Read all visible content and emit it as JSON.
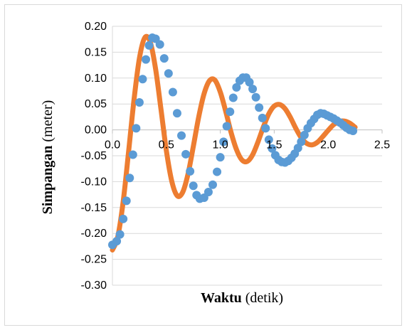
{
  "chart_data": {
    "type": "scatter",
    "title": "",
    "xlabel_bold": "Waktu",
    "xlabel_rest": " (detik)",
    "ylabel_bold": "Simpangan",
    "ylabel_rest": " (meter)",
    "xlim": [
      0,
      2.5
    ],
    "ylim": [
      -0.3,
      0.2
    ],
    "x_ticks": [
      "0.0",
      "0.5",
      "1.0",
      "1.5",
      "2.0",
      "2.5"
    ],
    "y_ticks": [
      "0.20",
      "0.15",
      "0.10",
      "0.05",
      "0.00",
      "-0.05",
      "-0.10",
      "-0.15",
      "-0.20",
      "-0.25",
      "-0.30"
    ],
    "grid": {
      "horizontal": true,
      "vertical": false
    },
    "legend": "none",
    "colors": {
      "fit_line": "#ED7D31",
      "data_points": "#5B9BD5",
      "gridline": "#d9d9d9"
    },
    "series": [
      {
        "kind": "line",
        "x": [
          0.0,
          0.05,
          0.1,
          0.15,
          0.2,
          0.25,
          0.3,
          0.35,
          0.4,
          0.45,
          0.5,
          0.55,
          0.6,
          0.65,
          0.7,
          0.75,
          0.8,
          0.85,
          0.9,
          0.95,
          1.0,
          1.05,
          1.1,
          1.15,
          1.2,
          1.25,
          1.3,
          1.35,
          1.4,
          1.45,
          1.5,
          1.55,
          1.6,
          1.65,
          1.7,
          1.75,
          1.8,
          1.85,
          1.9,
          1.95,
          2.0,
          2.05,
          2.1,
          2.15,
          2.2,
          2.25
        ],
        "y": [
          -0.232,
          -0.206,
          -0.138,
          -0.042,
          0.058,
          0.138,
          0.178,
          0.17,
          0.118,
          0.04,
          -0.04,
          -0.099,
          -0.127,
          -0.121,
          -0.086,
          -0.032,
          0.025,
          0.07,
          0.095,
          0.096,
          0.073,
          0.036,
          -0.005,
          -0.038,
          -0.058,
          -0.061,
          -0.048,
          -0.023,
          0.006,
          0.031,
          0.046,
          0.049,
          0.041,
          0.024,
          0.003,
          -0.015,
          -0.026,
          -0.029,
          -0.024,
          -0.013,
          -0.001,
          0.01,
          0.016,
          0.017,
          0.013,
          0.005
        ]
      },
      {
        "kind": "points",
        "x": [
          0.0,
          0.04,
          0.07,
          0.1,
          0.13,
          0.16,
          0.19,
          0.22,
          0.25,
          0.28,
          0.31,
          0.34,
          0.37,
          0.4,
          0.44,
          0.48,
          0.52,
          0.56,
          0.6,
          0.64,
          0.68,
          0.72,
          0.75,
          0.78,
          0.81,
          0.85,
          0.89,
          0.93,
          0.97,
          1.0,
          1.03,
          1.06,
          1.09,
          1.12,
          1.15,
          1.18,
          1.21,
          1.24,
          1.27,
          1.3,
          1.33,
          1.36,
          1.39,
          1.42,
          1.45,
          1.48,
          1.51,
          1.54,
          1.57,
          1.6,
          1.63,
          1.66,
          1.69,
          1.72,
          1.75,
          1.78,
          1.81,
          1.84,
          1.87,
          1.9,
          1.93,
          1.96,
          1.99,
          2.02,
          2.05,
          2.08,
          2.11,
          2.14,
          2.17,
          2.2,
          2.23
        ],
        "y": [
          -0.222,
          -0.215,
          -0.202,
          -0.172,
          -0.137,
          -0.093,
          -0.048,
          0.003,
          0.053,
          0.098,
          0.136,
          0.163,
          0.178,
          0.176,
          0.165,
          0.138,
          0.109,
          0.073,
          0.032,
          -0.011,
          -0.047,
          -0.08,
          -0.108,
          -0.126,
          -0.133,
          -0.131,
          -0.12,
          -0.106,
          -0.081,
          -0.053,
          -0.023,
          0.007,
          0.035,
          0.062,
          0.082,
          0.095,
          0.101,
          0.101,
          0.092,
          0.079,
          0.063,
          0.043,
          0.023,
          0.003,
          -0.019,
          -0.036,
          -0.049,
          -0.058,
          -0.062,
          -0.063,
          -0.06,
          -0.054,
          -0.046,
          -0.035,
          -0.023,
          -0.01,
          0.003,
          0.013,
          0.021,
          0.029,
          0.032,
          0.031,
          0.028,
          0.025,
          0.022,
          0.018,
          0.014,
          0.009,
          0.004,
          0.0,
          -0.002
        ]
      }
    ]
  }
}
